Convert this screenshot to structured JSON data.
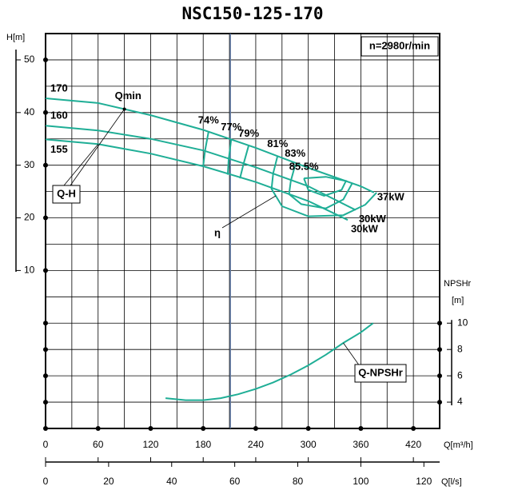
{
  "chart_data": {
    "type": "line",
    "title": "NSC150-125-170",
    "speed_label": "n=2980r/min",
    "x_label": "Q[m³/h]",
    "x2_label": "Q[l/s]",
    "y_label": "H[m]",
    "y2_label": "NPSHr",
    "y2_unit": "[m]",
    "xlim": [
      0,
      450
    ],
    "xticks": [
      0,
      60,
      120,
      180,
      240,
      300,
      360,
      420
    ],
    "x2lim": [
      0,
      125
    ],
    "x2ticks": [
      0,
      20,
      40,
      60,
      80,
      100,
      120
    ],
    "ylim": [
      -20,
      55
    ],
    "yticks": [
      10,
      20,
      30,
      40,
      50
    ],
    "y2lim": [
      2,
      32
    ],
    "y2ticks": [
      4,
      6,
      8,
      10
    ],
    "grid": true,
    "x_grid_step": 30,
    "y_grid_step": 5,
    "line_color": "#1fae96",
    "reference_x": 211,
    "reference_color": "#6680aa",
    "qh_label": "Q-H",
    "eta_label": "η",
    "qmin_label": "Qmin",
    "qmin": 90,
    "series": [
      {
        "name": "170",
        "end_label": "37kW",
        "x": [
          0,
          60,
          120,
          180,
          240,
          300,
          360,
          375
        ],
        "values": [
          42.7,
          41.8,
          39.5,
          36.7,
          33.3,
          29.5,
          26.0,
          24.8
        ]
      },
      {
        "name": "160",
        "end_label": "30kW",
        "x": [
          0,
          60,
          120,
          180,
          240,
          300,
          354
        ],
        "values": [
          37.5,
          36.6,
          35.0,
          32.8,
          29.6,
          26.0,
          21.5
        ]
      },
      {
        "name": "155",
        "end_label": "30kW",
        "x": [
          0,
          60,
          120,
          180,
          240,
          300,
          345
        ],
        "values": [
          34.9,
          34.0,
          32.2,
          29.8,
          26.8,
          23.2,
          19.6
        ]
      }
    ],
    "efficiency_contours": [
      {
        "name": "74%",
        "x": [
          186,
          182,
          180
        ],
        "values": [
          36.3,
          32.7,
          29.8
        ]
      },
      {
        "name": "77%",
        "x": [
          212,
          209,
          208
        ],
        "values": [
          35.0,
          31.0,
          28.2
        ]
      },
      {
        "name": "79%",
        "x": [
          232,
          226,
          222
        ],
        "values": [
          33.8,
          30.2,
          27.5
        ]
      },
      {
        "name": "81%",
        "x": [
          265,
          260,
          258,
          270,
          300,
          340,
          365,
          378
        ],
        "values": [
          31.8,
          28.5,
          25.5,
          22.2,
          20.3,
          20.5,
          22.5,
          24.8
        ]
      },
      {
        "name": "83%",
        "x": [
          285,
          280,
          278,
          292,
          320,
          340,
          350
        ],
        "values": [
          30.0,
          27.0,
          24.5,
          22.6,
          21.8,
          23.5,
          26.5
        ]
      },
      {
        "name": "85.5%",
        "x": [
          295,
          300,
          318,
          338,
          343,
          320,
          295
        ],
        "values": [
          27.5,
          25.3,
          24.2,
          25.3,
          27.0,
          27.8,
          27.5
        ]
      }
    ],
    "npsh_series": {
      "name": "Q-NPSHr",
      "axis": "y2",
      "x": [
        137,
        160,
        180,
        200,
        220,
        240,
        260,
        280,
        300,
        320,
        340,
        360,
        374
      ],
      "values": [
        4.3,
        4.15,
        4.15,
        4.3,
        4.6,
        5.0,
        5.5,
        6.1,
        6.8,
        7.6,
        8.5,
        9.3,
        10.0
      ]
    }
  }
}
